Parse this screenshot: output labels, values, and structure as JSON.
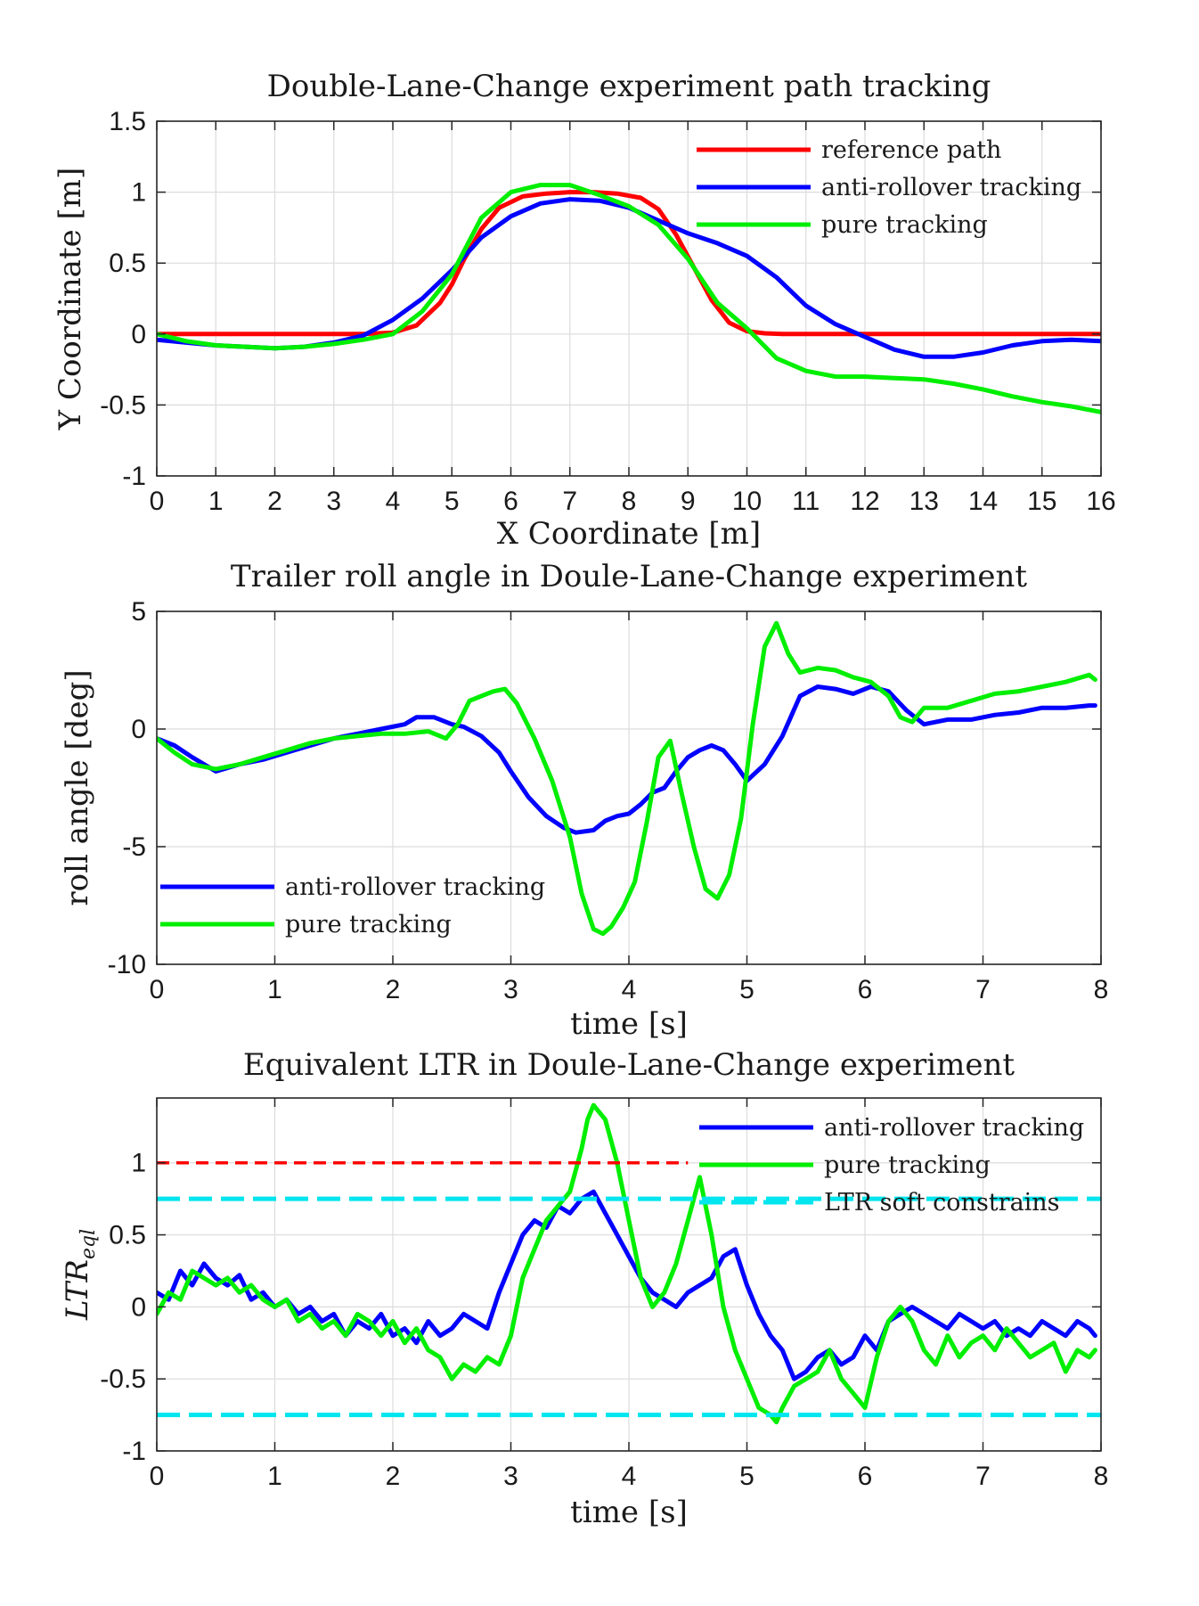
{
  "chart_data": [
    {
      "type": "line",
      "title": "Double-Lane-Change experiment path tracking",
      "xlabel": "X Coordinate [m]",
      "ylabel": "Y Coordinate [m]",
      "xlim": [
        0,
        16
      ],
      "ylim": [
        -1,
        1.5
      ],
      "xticks": [
        0,
        1,
        2,
        3,
        4,
        5,
        6,
        7,
        8,
        9,
        10,
        11,
        12,
        13,
        14,
        15,
        16
      ],
      "yticks": [
        -1,
        -0.5,
        0,
        0.5,
        1,
        1.5
      ],
      "xtick_labels": [
        "0",
        "1",
        "2",
        "3",
        "4",
        "5",
        "6",
        "7",
        "8",
        "9",
        "10",
        "11",
        "12",
        "13",
        "14",
        "15",
        "16"
      ],
      "ytick_labels": [
        "-1",
        "-0.5",
        "0",
        "0.5",
        "1",
        "1.5"
      ],
      "grid": true,
      "legend_position": "top-right",
      "legend": [
        "reference path",
        "anti-rollover tracking",
        "pure tracking"
      ],
      "series": [
        {
          "name": "reference path",
          "color": "#ff0000",
          "x": [
            0,
            3.5,
            4,
            4.4,
            4.8,
            5,
            5.2,
            5.5,
            5.8,
            6.2,
            6.6,
            7,
            7.4,
            7.8,
            8.2,
            8.5,
            8.8,
            9.1,
            9.4,
            9.7,
            10,
            10.3,
            10.6,
            11,
            12,
            16
          ],
          "y": [
            0,
            0,
            0.01,
            0.06,
            0.22,
            0.35,
            0.52,
            0.74,
            0.89,
            0.97,
            0.99,
            1,
            1,
            0.99,
            0.96,
            0.88,
            0.7,
            0.47,
            0.24,
            0.08,
            0.02,
            0.005,
            0,
            0,
            0,
            0
          ]
        },
        {
          "name": "anti-rollover tracking",
          "color": "#0000ff",
          "x": [
            0,
            0.5,
            1,
            1.5,
            2,
            2.5,
            3,
            3.5,
            4,
            4.5,
            5,
            5.5,
            6,
            6.5,
            7,
            7.5,
            8,
            8.5,
            9,
            9.5,
            10,
            10.5,
            11,
            11.5,
            12,
            12.5,
            13,
            13.5,
            14,
            14.5,
            15,
            15.5,
            16
          ],
          "y": [
            -0.04,
            -0.06,
            -0.08,
            -0.09,
            -0.1,
            -0.09,
            -0.06,
            -0.01,
            0.1,
            0.25,
            0.45,
            0.68,
            0.83,
            0.92,
            0.95,
            0.94,
            0.89,
            0.8,
            0.71,
            0.64,
            0.55,
            0.4,
            0.2,
            0.07,
            -0.02,
            -0.11,
            -0.16,
            -0.16,
            -0.13,
            -0.08,
            -0.05,
            -0.04,
            -0.05
          ]
        },
        {
          "name": "pure tracking",
          "color": "#00ee00",
          "x": [
            0,
            0.5,
            1,
            1.5,
            2,
            2.5,
            3,
            3.5,
            4,
            4.5,
            5,
            5.5,
            6,
            6.5,
            7,
            7.5,
            8,
            8.5,
            9,
            9.5,
            10,
            10.5,
            11,
            11.5,
            12,
            12.5,
            13,
            13.5,
            14,
            14.5,
            15,
            15.5,
            16
          ],
          "y": [
            0,
            -0.05,
            -0.08,
            -0.09,
            -0.1,
            -0.09,
            -0.07,
            -0.04,
            0.0,
            0.16,
            0.42,
            0.82,
            1.0,
            1.05,
            1.05,
            0.98,
            0.9,
            0.77,
            0.53,
            0.22,
            0.04,
            -0.17,
            -0.26,
            -0.3,
            -0.3,
            -0.31,
            -0.32,
            -0.35,
            -0.39,
            -0.44,
            -0.48,
            -0.51,
            -0.55
          ]
        }
      ]
    },
    {
      "type": "line",
      "title": "Trailer roll angle in Doule-Lane-Change experiment",
      "xlabel": "time [s]",
      "ylabel": "roll angle [deg]",
      "xlim": [
        0,
        8
      ],
      "ylim": [
        -10,
        5
      ],
      "xticks": [
        0,
        1,
        2,
        3,
        4,
        5,
        6,
        7,
        8
      ],
      "yticks": [
        -10,
        -5,
        0,
        5
      ],
      "xtick_labels": [
        "0",
        "1",
        "2",
        "3",
        "4",
        "5",
        "6",
        "7",
        "8"
      ],
      "ytick_labels": [
        "-10",
        "-5",
        "0",
        "5"
      ],
      "grid": true,
      "legend_position": "bottom-left",
      "legend": [
        "anti-rollover tracking",
        "pure tracking"
      ],
      "series": [
        {
          "name": "anti-rollover tracking",
          "color": "#0000ff",
          "x": [
            0,
            0.15,
            0.3,
            0.5,
            0.7,
            0.9,
            1.1,
            1.3,
            1.5,
            1.7,
            1.9,
            2.1,
            2.2,
            2.35,
            2.5,
            2.6,
            2.75,
            2.9,
            3.0,
            3.15,
            3.3,
            3.45,
            3.55,
            3.7,
            3.8,
            3.9,
            4.0,
            4.1,
            4.2,
            4.3,
            4.4,
            4.5,
            4.6,
            4.7,
            4.8,
            4.9,
            5.0,
            5.15,
            5.3,
            5.45,
            5.6,
            5.75,
            5.9,
            6.05,
            6.2,
            6.35,
            6.5,
            6.7,
            6.9,
            7.1,
            7.3,
            7.5,
            7.7,
            7.9,
            7.95
          ],
          "y": [
            -0.4,
            -0.7,
            -1.2,
            -1.8,
            -1.5,
            -1.3,
            -1.0,
            -0.7,
            -0.4,
            -0.2,
            0.0,
            0.2,
            0.5,
            0.5,
            0.2,
            0.1,
            -0.3,
            -1.0,
            -1.8,
            -2.9,
            -3.7,
            -4.2,
            -4.4,
            -4.3,
            -3.9,
            -3.7,
            -3.6,
            -3.2,
            -2.7,
            -2.5,
            -1.8,
            -1.2,
            -0.9,
            -0.7,
            -0.9,
            -1.5,
            -2.2,
            -1.5,
            -0.3,
            1.4,
            1.8,
            1.7,
            1.5,
            1.8,
            1.6,
            0.8,
            0.2,
            0.4,
            0.4,
            0.6,
            0.7,
            0.9,
            0.9,
            1.0,
            1.0
          ]
        },
        {
          "name": "pure tracking",
          "color": "#00ee00",
          "x": [
            0,
            0.15,
            0.3,
            0.5,
            0.7,
            0.9,
            1.1,
            1.3,
            1.5,
            1.7,
            1.9,
            2.1,
            2.3,
            2.45,
            2.55,
            2.65,
            2.75,
            2.85,
            2.95,
            3.05,
            3.2,
            3.35,
            3.5,
            3.6,
            3.7,
            3.78,
            3.85,
            3.95,
            4.05,
            4.15,
            4.25,
            4.35,
            4.45,
            4.55,
            4.65,
            4.75,
            4.85,
            4.95,
            5.05,
            5.15,
            5.25,
            5.35,
            5.45,
            5.6,
            5.75,
            5.9,
            6.05,
            6.2,
            6.3,
            6.4,
            6.5,
            6.7,
            6.9,
            7.1,
            7.3,
            7.5,
            7.7,
            7.9,
            7.95
          ],
          "y": [
            -0.4,
            -1.0,
            -1.5,
            -1.7,
            -1.5,
            -1.2,
            -0.9,
            -0.6,
            -0.4,
            -0.3,
            -0.2,
            -0.2,
            -0.1,
            -0.4,
            0.2,
            1.2,
            1.4,
            1.6,
            1.7,
            1.1,
            -0.4,
            -2.2,
            -4.6,
            -7.0,
            -8.5,
            -8.7,
            -8.4,
            -7.6,
            -6.5,
            -4.0,
            -1.2,
            -0.5,
            -2.8,
            -5.0,
            -6.8,
            -7.2,
            -6.2,
            -3.8,
            0.2,
            3.5,
            4.5,
            3.2,
            2.4,
            2.6,
            2.5,
            2.2,
            2.0,
            1.4,
            0.5,
            0.3,
            0.9,
            0.9,
            1.2,
            1.5,
            1.6,
            1.8,
            2.0,
            2.3,
            2.1
          ]
        }
      ]
    },
    {
      "type": "line",
      "title": "Equivalent LTR in Doule-Lane-Change experiment",
      "xlabel": "time [s]",
      "ylabel": "LTR",
      "ylabel_subscript": "eql",
      "xlim": [
        0,
        8
      ],
      "ylim": [
        -1,
        1.45
      ],
      "xticks": [
        0,
        1,
        2,
        3,
        4,
        5,
        6,
        7,
        8
      ],
      "yticks": [
        -1,
        -0.5,
        0,
        0.5,
        1
      ],
      "xtick_labels": [
        "0",
        "1",
        "2",
        "3",
        "4",
        "5",
        "6",
        "7",
        "8"
      ],
      "ytick_labels": [
        "-1",
        "-0.5",
        "0",
        "0.5",
        "1"
      ],
      "grid": true,
      "legend_position": "top-right",
      "legend": [
        "anti-rollover tracking",
        "pure tracking",
        "LTR soft constrains"
      ],
      "series": [
        {
          "name": "anti-rollover tracking",
          "color": "#0000ff",
          "x": [
            0,
            0.1,
            0.2,
            0.3,
            0.4,
            0.5,
            0.6,
            0.7,
            0.8,
            0.9,
            1.0,
            1.1,
            1.2,
            1.3,
            1.4,
            1.5,
            1.6,
            1.7,
            1.8,
            1.9,
            2.0,
            2.1,
            2.2,
            2.3,
            2.4,
            2.5,
            2.6,
            2.7,
            2.8,
            2.9,
            3.0,
            3.1,
            3.2,
            3.3,
            3.4,
            3.5,
            3.6,
            3.7,
            3.8,
            3.9,
            4.0,
            4.1,
            4.2,
            4.3,
            4.4,
            4.5,
            4.6,
            4.7,
            4.8,
            4.9,
            5.0,
            5.1,
            5.2,
            5.3,
            5.4,
            5.5,
            5.6,
            5.7,
            5.8,
            5.9,
            6.0,
            6.1,
            6.2,
            6.3,
            6.4,
            6.5,
            6.6,
            6.7,
            6.8,
            6.9,
            7.0,
            7.1,
            7.2,
            7.3,
            7.4,
            7.5,
            7.6,
            7.7,
            7.8,
            7.9,
            7.95
          ],
          "y": [
            0.1,
            0.05,
            0.25,
            0.15,
            0.3,
            0.2,
            0.15,
            0.22,
            0.05,
            0.1,
            0.0,
            0.05,
            -0.05,
            0.0,
            -0.1,
            -0.05,
            -0.2,
            -0.1,
            -0.15,
            -0.05,
            -0.2,
            -0.15,
            -0.25,
            -0.1,
            -0.2,
            -0.15,
            -0.05,
            -0.1,
            -0.15,
            0.1,
            0.3,
            0.5,
            0.6,
            0.55,
            0.7,
            0.65,
            0.75,
            0.8,
            0.65,
            0.5,
            0.35,
            0.2,
            0.1,
            0.05,
            0.0,
            0.1,
            0.15,
            0.2,
            0.35,
            0.4,
            0.15,
            -0.05,
            -0.2,
            -0.3,
            -0.5,
            -0.45,
            -0.35,
            -0.3,
            -0.4,
            -0.35,
            -0.2,
            -0.3,
            -0.1,
            -0.05,
            0.0,
            -0.05,
            -0.1,
            -0.15,
            -0.05,
            -0.1,
            -0.15,
            -0.1,
            -0.2,
            -0.15,
            -0.2,
            -0.1,
            -0.15,
            -0.2,
            -0.1,
            -0.15,
            -0.2
          ]
        },
        {
          "name": "pure tracking",
          "color": "#00ee00",
          "x": [
            0,
            0.1,
            0.2,
            0.3,
            0.4,
            0.5,
            0.6,
            0.7,
            0.8,
            0.9,
            1.0,
            1.1,
            1.2,
            1.3,
            1.4,
            1.5,
            1.6,
            1.7,
            1.8,
            1.9,
            2.0,
            2.1,
            2.2,
            2.3,
            2.4,
            2.5,
            2.6,
            2.7,
            2.8,
            2.9,
            3.0,
            3.1,
            3.2,
            3.3,
            3.4,
            3.5,
            3.6,
            3.65,
            3.7,
            3.8,
            3.9,
            4.0,
            4.1,
            4.2,
            4.3,
            4.4,
            4.5,
            4.6,
            4.7,
            4.8,
            4.9,
            5.0,
            5.1,
            5.2,
            5.25,
            5.3,
            5.4,
            5.5,
            5.6,
            5.7,
            5.8,
            5.9,
            6.0,
            6.1,
            6.2,
            6.3,
            6.4,
            6.5,
            6.6,
            6.7,
            6.8,
            6.9,
            7.0,
            7.1,
            7.2,
            7.3,
            7.4,
            7.5,
            7.6,
            7.7,
            7.8,
            7.9,
            7.95
          ],
          "y": [
            -0.05,
            0.1,
            0.05,
            0.25,
            0.2,
            0.15,
            0.2,
            0.1,
            0.15,
            0.05,
            0.0,
            0.05,
            -0.1,
            -0.05,
            -0.15,
            -0.1,
            -0.2,
            -0.05,
            -0.1,
            -0.2,
            -0.1,
            -0.25,
            -0.15,
            -0.3,
            -0.35,
            -0.5,
            -0.4,
            -0.45,
            -0.35,
            -0.4,
            -0.2,
            0.2,
            0.4,
            0.6,
            0.7,
            0.8,
            1.1,
            1.3,
            1.4,
            1.3,
            1.0,
            0.6,
            0.2,
            0.0,
            0.1,
            0.3,
            0.6,
            0.9,
            0.5,
            0.0,
            -0.3,
            -0.5,
            -0.7,
            -0.75,
            -0.8,
            -0.7,
            -0.55,
            -0.5,
            -0.45,
            -0.3,
            -0.5,
            -0.6,
            -0.7,
            -0.35,
            -0.1,
            0.0,
            -0.1,
            -0.3,
            -0.4,
            -0.2,
            -0.35,
            -0.25,
            -0.2,
            -0.3,
            -0.15,
            -0.25,
            -0.35,
            -0.3,
            -0.25,
            -0.45,
            -0.3,
            -0.35,
            -0.3
          ]
        },
        {
          "name": "",
          "color": "#ff0000",
          "dash": true,
          "x": [
            0,
            4.5
          ],
          "y": [
            1,
            1
          ]
        },
        {
          "name": "LTR soft constrains",
          "color": "#00e5ee",
          "dash": true,
          "x": [
            0,
            8
          ],
          "y": [
            0.75,
            0.75
          ]
        },
        {
          "name": "",
          "color": "#00e5ee",
          "dash": true,
          "x": [
            0,
            8
          ],
          "y": [
            -0.75,
            -0.75
          ]
        }
      ]
    }
  ]
}
